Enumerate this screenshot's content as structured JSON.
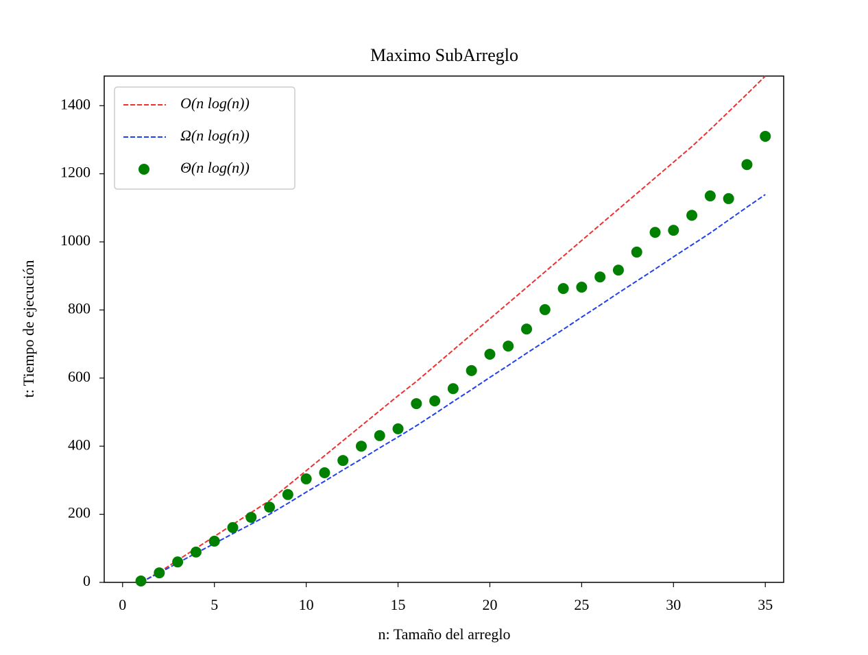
{
  "chart_data": {
    "type": "line",
    "title": "Maximo SubArreglo",
    "x_label": "n: Tamaño del arreglo",
    "y_label": "t: Tiempo de ejecución",
    "x": [
      1,
      2,
      3,
      4,
      5,
      6,
      7,
      8,
      9,
      10,
      11,
      12,
      13,
      14,
      15,
      16,
      17,
      18,
      19,
      20,
      21,
      22,
      23,
      24,
      25,
      26,
      27,
      28,
      29,
      30,
      31,
      32,
      33,
      34,
      35
    ],
    "series": [
      {
        "name": "O(n log(n))",
        "color": "#ee3030",
        "style": "dashed",
        "values": [
          0,
          30,
          65,
          100,
          135,
          170,
          205,
          240,
          284,
          328,
          372,
          416,
          460,
          504,
          548,
          590,
          636,
          682,
          728,
          774,
          820,
          866,
          912,
          958,
          1004,
          1050,
          1096,
          1142,
          1188,
          1234,
          1280,
          1330,
          1382,
          1434,
          1487
        ]
      },
      {
        "name": "Ω(n log(n))",
        "color": "#2040ee",
        "style": "dashed",
        "values": [
          0,
          28,
          57,
          86,
          114,
          143,
          171,
          200,
          232,
          265,
          297,
          330,
          362,
          395,
          427,
          460,
          495,
          531,
          566,
          602,
          637,
          673,
          708,
          743,
          779,
          814,
          850,
          885,
          920,
          956,
          991,
          1026,
          1064,
          1102,
          1139
        ]
      },
      {
        "name": "Θ(n log(n))",
        "color": "#008000",
        "style": "scatter",
        "values": [
          4,
          28,
          60,
          89,
          121,
          161,
          191,
          221,
          258,
          304,
          322,
          358,
          400,
          431,
          451,
          525,
          533,
          569,
          622,
          670,
          694,
          744,
          801,
          863,
          867,
          897,
          917,
          970,
          1028,
          1034,
          1078,
          1135,
          1127,
          1227,
          1310
        ]
      }
    ],
    "xlim": [
      -1,
      36
    ],
    "ylim": [
      0,
      1487
    ],
    "xticks": [
      0,
      5,
      10,
      15,
      20,
      25,
      30,
      35
    ],
    "yticks": [
      0,
      200,
      400,
      600,
      800,
      1000,
      1200,
      1400
    ],
    "grid": false,
    "legend": "upper-left"
  }
}
